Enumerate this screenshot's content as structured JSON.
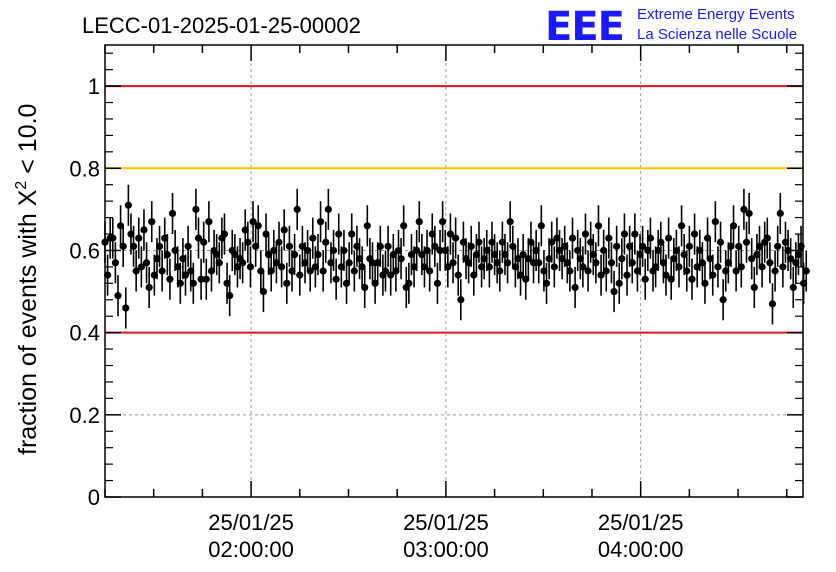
{
  "header": {
    "title": "LECC-01-2025-01-25-00002",
    "logo_text": "EEE",
    "logo_line1": "Extreme Energy Events",
    "logo_line2": "La Scienza nelle Scuole"
  },
  "colors": {
    "logo": "#1a1aff",
    "line_red": "#e8141c",
    "line_orange": "#ffc000",
    "markers": "#000000",
    "grid": "#9a9a9a"
  },
  "chart_data": {
    "type": "scatter",
    "title": "LECC-01-2025-01-25-00002",
    "xlabel": "",
    "ylabel_text": "fraction of events with X",
    "ylabel_superscript": "2",
    "ylabel_suffix": " < 10.0",
    "x_start": "25/01/25 01:15:00",
    "x_end": "25/01/25 04:50:00",
    "ylim": [
      0,
      1.1
    ],
    "yticks": [
      0,
      0.2,
      0.4,
      0.6,
      0.8,
      1
    ],
    "ytick_labels": [
      "0",
      "0.2",
      "0.4",
      "0.6",
      "0.8",
      "1"
    ],
    "xticks": [
      {
        "x": "25/01/25 02:00:00",
        "line1": "25/01/25",
        "line2": "02:00:00"
      },
      {
        "x": "25/01/25 03:00:00",
        "line1": "25/01/25",
        "line2": "03:00:00"
      },
      {
        "x": "25/01/25 04:00:00",
        "line1": "25/01/25",
        "line2": "04:00:00"
      }
    ],
    "grid": true,
    "reference_lines": [
      {
        "y": 1.0,
        "color": "#e8141c"
      },
      {
        "y": 0.8,
        "color": "#ffc000"
      },
      {
        "y": 0.4,
        "color": "#e8141c"
      }
    ],
    "error": 0.05,
    "series": [
      {
        "x_start": "25/01/25 01:15:00",
        "x_step_seconds": 48,
        "values": [
          0.62,
          0.54,
          0.63,
          0.63,
          0.57,
          0.49,
          0.66,
          0.61,
          0.46,
          0.71,
          0.64,
          0.61,
          0.55,
          0.63,
          0.56,
          0.65,
          0.57,
          0.51,
          0.67,
          0.54,
          0.58,
          0.61,
          0.55,
          0.63,
          0.59,
          0.53,
          0.69,
          0.6,
          0.56,
          0.52,
          0.58,
          0.54,
          0.61,
          0.55,
          0.52,
          0.7,
          0.63,
          0.53,
          0.62,
          0.53,
          0.67,
          0.55,
          0.6,
          0.59,
          0.57,
          0.63,
          0.64,
          0.52,
          0.49,
          0.6,
          0.59,
          0.56,
          0.58,
          0.57,
          0.65,
          0.62,
          0.56,
          0.67,
          0.61,
          0.66,
          0.55,
          0.5,
          0.64,
          0.59,
          0.55,
          0.6,
          0.57,
          0.62,
          0.56,
          0.65,
          0.52,
          0.61,
          0.55,
          0.59,
          0.7,
          0.54,
          0.61,
          0.57,
          0.6,
          0.55,
          0.63,
          0.56,
          0.59,
          0.67,
          0.55,
          0.62,
          0.7,
          0.57,
          0.6,
          0.53,
          0.64,
          0.56,
          0.6,
          0.52,
          0.57,
          0.64,
          0.55,
          0.61,
          0.58,
          0.56,
          0.51,
          0.66,
          0.58,
          0.57,
          0.52,
          0.57,
          0.61,
          0.54,
          0.55,
          0.61,
          0.54,
          0.59,
          0.55,
          0.6,
          0.58,
          0.66,
          0.51,
          0.52,
          0.59,
          0.56,
          0.6,
          0.67,
          0.59,
          0.56,
          0.6,
          0.55,
          0.64,
          0.61,
          0.52,
          0.6,
          0.67,
          0.6,
          0.56,
          0.64,
          0.57,
          0.63,
          0.54,
          0.48,
          0.62,
          0.58,
          0.57,
          0.61,
          0.54,
          0.59,
          0.62,
          0.56,
          0.58,
          0.6,
          0.56,
          0.62,
          0.59,
          0.57,
          0.55,
          0.62,
          0.59,
          0.57,
          0.67,
          0.61,
          0.56,
          0.58,
          0.54,
          0.59,
          0.53,
          0.58,
          0.62,
          0.57,
          0.6,
          0.57,
          0.66,
          0.55,
          0.52,
          0.58,
          0.62,
          0.56,
          0.63,
          0.6,
          0.58,
          0.61,
          0.57,
          0.55,
          0.63,
          0.51,
          0.6,
          0.58,
          0.56,
          0.64,
          0.55,
          0.62,
          0.59,
          0.57,
          0.66,
          0.54,
          0.6,
          0.55,
          0.63,
          0.57,
          0.5,
          0.61,
          0.52,
          0.58,
          0.64,
          0.54,
          0.61,
          0.57,
          0.64,
          0.55,
          0.59,
          0.61,
          0.53,
          0.6,
          0.63,
          0.55,
          0.56,
          0.6,
          0.62,
          0.57,
          0.54,
          0.63,
          0.53,
          0.58,
          0.6,
          0.56,
          0.66,
          0.59,
          0.55,
          0.61,
          0.53,
          0.64,
          0.56,
          0.6,
          0.57,
          0.52,
          0.63,
          0.58,
          0.54,
          0.67,
          0.56,
          0.62,
          0.48,
          0.55,
          0.57,
          0.61,
          0.66,
          0.55,
          0.61,
          0.56,
          0.7,
          0.62,
          0.69,
          0.58,
          0.51,
          0.59,
          0.61,
          0.56,
          0.62,
          0.63,
          0.57,
          0.47,
          0.55,
          0.61,
          0.69,
          0.56,
          0.62,
          0.6,
          0.58,
          0.51,
          0.57,
          0.59,
          0.61,
          0.52,
          0.55
        ]
      }
    ]
  }
}
